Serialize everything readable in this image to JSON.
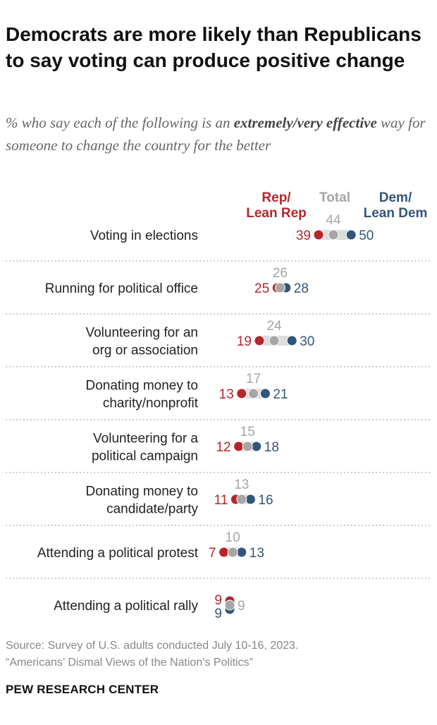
{
  "title": "Democrats are more likely than Republicans to say voting can produce positive change",
  "subtitle": {
    "before": "% who say each of the following is an ",
    "bold": "extremely/very effective",
    "after": " way for someone to change the country for the better"
  },
  "source": {
    "line1": "Source: Survey of U.S. adults conducted July 10-16, 2023.",
    "line2": "“Americans’ Dismal Views of the Nation’s Politics”"
  },
  "organization": "PEW RESEARCH CENTER",
  "colors": {
    "rep": "#b5262b",
    "total": "#a6a6a6",
    "dem": "#33557a",
    "label": "#222222",
    "divider": "#999999"
  },
  "chart_data": {
    "type": "dot",
    "legend": {
      "rep": [
        "Rep/",
        "Lean Rep"
      ],
      "total": [
        "Total"
      ],
      "dem": [
        "Dem/",
        "Lean Dem"
      ]
    },
    "series": [
      {
        "key": "rep",
        "name": "Rep/Lean Rep"
      },
      {
        "key": "total",
        "name": "Total"
      },
      {
        "key": "dem",
        "name": "Dem/Lean Dem"
      }
    ],
    "categories": [
      {
        "label": [
          "Voting in elections"
        ],
        "rep": 39,
        "total": 44,
        "dem": 50
      },
      {
        "label": [
          "Running for political office"
        ],
        "rep": 25,
        "total": 26,
        "dem": 28
      },
      {
        "label": [
          "Volunteering for an",
          "org or association"
        ],
        "rep": 19,
        "total": 24,
        "dem": 30
      },
      {
        "label": [
          "Donating money to",
          "charity/nonprofit"
        ],
        "rep": 13,
        "total": 17,
        "dem": 21
      },
      {
        "label": [
          "Volunteering for a",
          "political campaign"
        ],
        "rep": 12,
        "total": 15,
        "dem": 18
      },
      {
        "label": [
          "Donating money to",
          "candidate/party"
        ],
        "rep": 11,
        "total": 13,
        "dem": 16
      },
      {
        "label": [
          "Attending a political protest"
        ],
        "rep": 7,
        "total": 10,
        "dem": 13
      },
      {
        "label": [
          "Attending a political rally"
        ],
        "rep": 9,
        "total": 9,
        "dem": 9
      }
    ]
  }
}
